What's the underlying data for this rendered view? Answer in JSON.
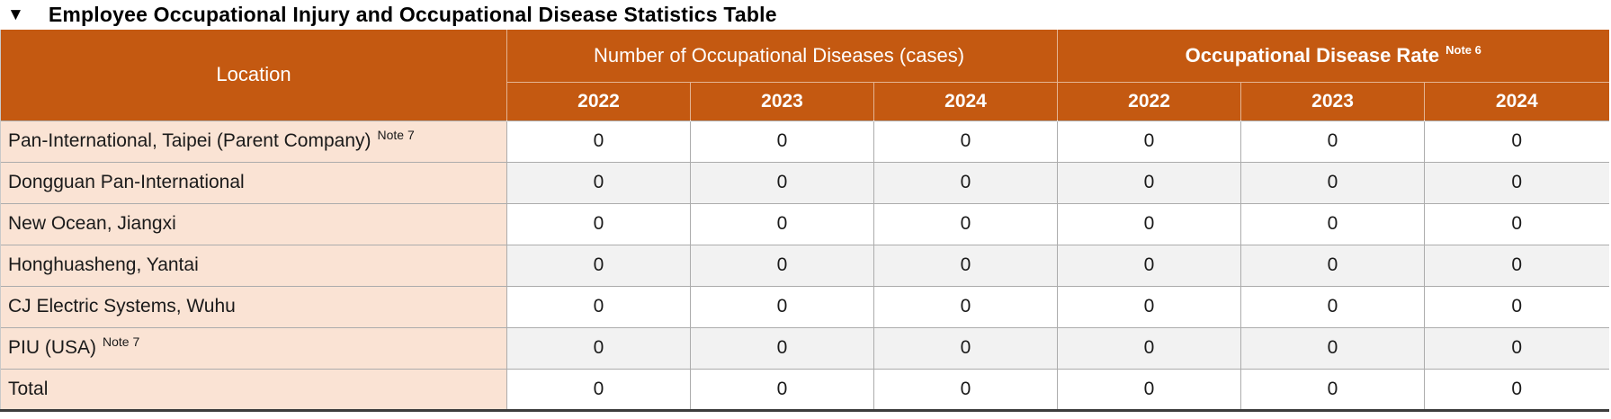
{
  "title": {
    "marker": "▼",
    "text": "Employee Occupational Injury and Occupational Disease Statistics Table"
  },
  "colors": {
    "header_bg": "#C45911",
    "header_text": "#FFFFFF",
    "location_bg": "#FAE3D4",
    "row_bg": "#FFFFFF",
    "row_alt_bg": "#F2F2F2",
    "grid_line": "#ACACAC",
    "bottom_border": "#3C3C3C",
    "body_text": "#1A1A1A",
    "title_text": "#000000"
  },
  "table": {
    "location_header": "Location",
    "groups": [
      {
        "label": "Number of Occupational Diseases (cases)",
        "note": ""
      },
      {
        "label": "Occupational Disease Rate",
        "note": "Note 6"
      }
    ],
    "years": [
      "2022",
      "2023",
      "2024",
      "2022",
      "2023",
      "2024"
    ],
    "rows": [
      {
        "location": "Pan-International, Taipei (Parent Company)",
        "location_note": "Note 7",
        "values": [
          "0",
          "0",
          "0",
          "0",
          "0",
          "0"
        ]
      },
      {
        "location": "Dongguan Pan-International",
        "location_note": "",
        "values": [
          "0",
          "0",
          "0",
          "0",
          "0",
          "0"
        ]
      },
      {
        "location": "New Ocean, Jiangxi",
        "location_note": "",
        "values": [
          "0",
          "0",
          "0",
          "0",
          "0",
          "0"
        ]
      },
      {
        "location": "Honghuasheng, Yantai",
        "location_note": "",
        "values": [
          "0",
          "0",
          "0",
          "0",
          "0",
          "0"
        ]
      },
      {
        "location": "CJ Electric Systems, Wuhu",
        "location_note": "",
        "values": [
          "0",
          "0",
          "0",
          "0",
          "0",
          "0"
        ]
      },
      {
        "location": "PIU (USA)",
        "location_note": "Note 7",
        "values": [
          "0",
          "0",
          "0",
          "0",
          "0",
          "0"
        ]
      },
      {
        "location": "Total",
        "location_note": "",
        "values": [
          "0",
          "0",
          "0",
          "0",
          "0",
          "0"
        ]
      }
    ]
  }
}
